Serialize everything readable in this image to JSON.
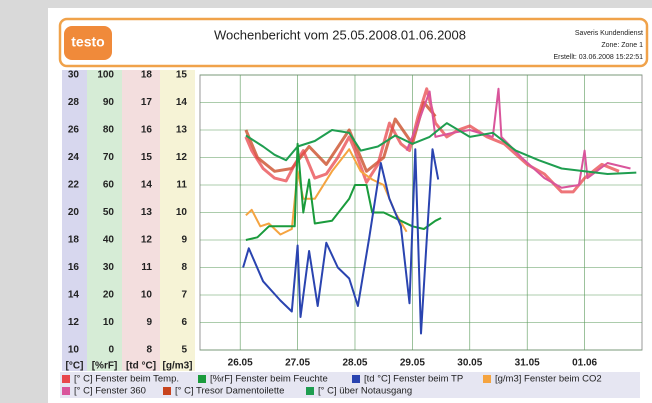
{
  "header": {
    "logo": "testo",
    "title": "Wochenbericht vom 25.05.2008.01.06.2008",
    "lines": [
      "Saveris Kundendienst",
      "Zone: Zone 1",
      "Erstellt: 03.06.2008 15:22:51"
    ]
  },
  "chart_data": {
    "type": "line",
    "xlim": [
      0.3,
      8
    ],
    "xticks": [
      {
        "value": 1,
        "label": "26.05"
      },
      {
        "value": 2,
        "label": "27.05"
      },
      {
        "value": 3,
        "label": "28.05"
      },
      {
        "value": 4,
        "label": "29.05"
      },
      {
        "value": 5,
        "label": "30.05"
      },
      {
        "value": 6,
        "label": "31.05"
      },
      {
        "value": 7,
        "label": "01.06"
      }
    ],
    "grid": true,
    "axes": [
      {
        "label": "[°C]",
        "lim": [
          10,
          30
        ],
        "ticks": [
          30,
          28,
          26,
          24,
          22,
          20,
          18,
          16,
          14,
          12,
          10
        ],
        "color": "#d7d7ee"
      },
      {
        "label": "[%rF]",
        "lim": [
          0,
          100
        ],
        "ticks": [
          100,
          90,
          80,
          70,
          60,
          50,
          40,
          30,
          20,
          10,
          0
        ],
        "color": "#d6ecd6"
      },
      {
        "label": "[td °C]",
        "lim": [
          8,
          18
        ],
        "ticks": [
          18,
          17,
          16,
          15,
          14,
          13,
          12,
          11,
          10,
          9,
          8
        ],
        "color": "#f3dede"
      },
      {
        "label": "[g/m3]",
        "lim": [
          5,
          15
        ],
        "ticks": [
          15,
          14,
          13,
          12,
          11,
          10,
          9,
          8,
          7,
          6,
          5
        ],
        "color": "#f6f3d6"
      }
    ],
    "series": [
      {
        "name": "[° C] Fenster beim Temp.",
        "color": "#e8474c",
        "axis": 0,
        "x": [
          1.1,
          1.2,
          1.4,
          1.6,
          1.8,
          1.95,
          2.1,
          2.3,
          2.5,
          2.7,
          2.9,
          3.0,
          3.2,
          3.4,
          3.6,
          3.8,
          3.95,
          4.1,
          4.25,
          4.4,
          4.6,
          4.8,
          5.0,
          5.3,
          5.6,
          6.0,
          6.3,
          6.6,
          6.8,
          7.0,
          7.3,
          7.6
        ],
        "values": [
          25.5,
          24.5,
          23.2,
          22.5,
          22.3,
          23.5,
          24.5,
          22.5,
          22.8,
          24.0,
          25.5,
          24.5,
          22.2,
          23.5,
          26.5,
          25.0,
          24.5,
          27.0,
          29.0,
          26.5,
          25.5,
          26.0,
          26.3,
          25.5,
          25.0,
          23.5,
          22.8,
          21.5,
          21.5,
          22.5,
          23.5,
          23.0
        ]
      },
      {
        "name": "[%rF] Fenster beim Feuchte",
        "color": "#1a9b3c",
        "axis": 1,
        "x": [
          1.1,
          1.3,
          1.5,
          1.8,
          1.95,
          2.0,
          2.1,
          2.2,
          2.3,
          2.6,
          2.9,
          3.0,
          3.2,
          3.3,
          3.5,
          3.8,
          4.0,
          4.2,
          4.4,
          4.5
        ],
        "values": [
          40,
          41,
          45,
          45,
          45,
          75,
          50,
          62,
          46,
          47,
          55,
          60,
          60,
          50,
          50,
          47,
          45,
          44,
          47,
          48
        ]
      },
      {
        "name": "[td °C] Fenster beim TP",
        "color": "#2a44b0",
        "axis": 2,
        "x": [
          1.05,
          1.15,
          1.4,
          1.7,
          1.9,
          2.0,
          2.05,
          2.2,
          2.35,
          2.5,
          2.7,
          2.9,
          3.05,
          3.25,
          3.45,
          3.6,
          3.8,
          3.95,
          4.05,
          4.15,
          4.25,
          4.35,
          4.45
        ],
        "values": [
          11.0,
          11.7,
          10.5,
          9.8,
          9.4,
          11.8,
          9.2,
          11.6,
          9.6,
          11.9,
          11.0,
          10.6,
          9.6,
          12.1,
          14.8,
          13.5,
          12.5,
          9.7,
          15.3,
          8.6,
          12.0,
          15.3,
          14.2
        ]
      },
      {
        "name": "[g/m3] Fenster beim CO2",
        "color": "#f5a440",
        "axis": 3,
        "x": [
          1.1,
          1.2,
          1.35,
          1.5,
          1.7,
          1.9,
          2.0,
          2.1,
          2.3,
          2.6,
          2.9,
          3.1,
          3.3,
          3.5,
          3.7,
          3.9
        ],
        "values": [
          9.9,
          10.1,
          9.5,
          9.6,
          9.2,
          9.4,
          11.5,
          10.5,
          10.5,
          11.5,
          12.3,
          11.5,
          11.2,
          11.0,
          10.0,
          9.3
        ]
      },
      {
        "name": "[° C] Fenster 360",
        "color": "#d9559b",
        "axis": 0,
        "x": [
          3.9,
          4.1,
          4.3,
          4.4,
          4.7,
          5.0,
          5.4,
          5.5,
          5.55,
          5.9,
          6.3,
          6.6,
          6.9,
          7.0,
          7.05,
          7.4,
          7.8
        ],
        "values": [
          24.5,
          26.5,
          28.8,
          25.5,
          25.8,
          26.0,
          25.5,
          29.0,
          25.5,
          24.0,
          22.5,
          21.8,
          22.0,
          24.5,
          22.5,
          23.6,
          23.2
        ]
      },
      {
        "name": "[° C] Tresor Damentoilette",
        "color": "#c8441e",
        "axis": 0,
        "x": [
          1.1,
          1.3,
          1.6,
          1.9,
          2.2,
          2.5,
          2.9,
          3.2,
          3.5,
          3.7,
          4.0,
          4.2,
          4.4
        ],
        "values": [
          26.0,
          24.0,
          23.0,
          23.2,
          24.8,
          23.5,
          26.0,
          23.0,
          24.0,
          26.8,
          25.0,
          28.0,
          27.0
        ]
      },
      {
        "name": "[° C] über Notausgang",
        "color": "#1f9e50",
        "axis": 0,
        "x": [
          1.1,
          1.4,
          1.6,
          1.8,
          2.0,
          2.3,
          2.6,
          2.9,
          3.1,
          3.4,
          3.7,
          4.0,
          4.3,
          4.6,
          5.0,
          5.4,
          5.8,
          6.2,
          6.6,
          7.0,
          7.4,
          7.9
        ],
        "values": [
          25.6,
          24.8,
          24.2,
          23.8,
          24.8,
          25.2,
          26.0,
          25.8,
          24.5,
          24.8,
          25.6,
          25.0,
          25.5,
          26.5,
          25.5,
          25.8,
          24.5,
          23.8,
          23.2,
          23.0,
          22.8,
          22.9
        ]
      }
    ]
  }
}
